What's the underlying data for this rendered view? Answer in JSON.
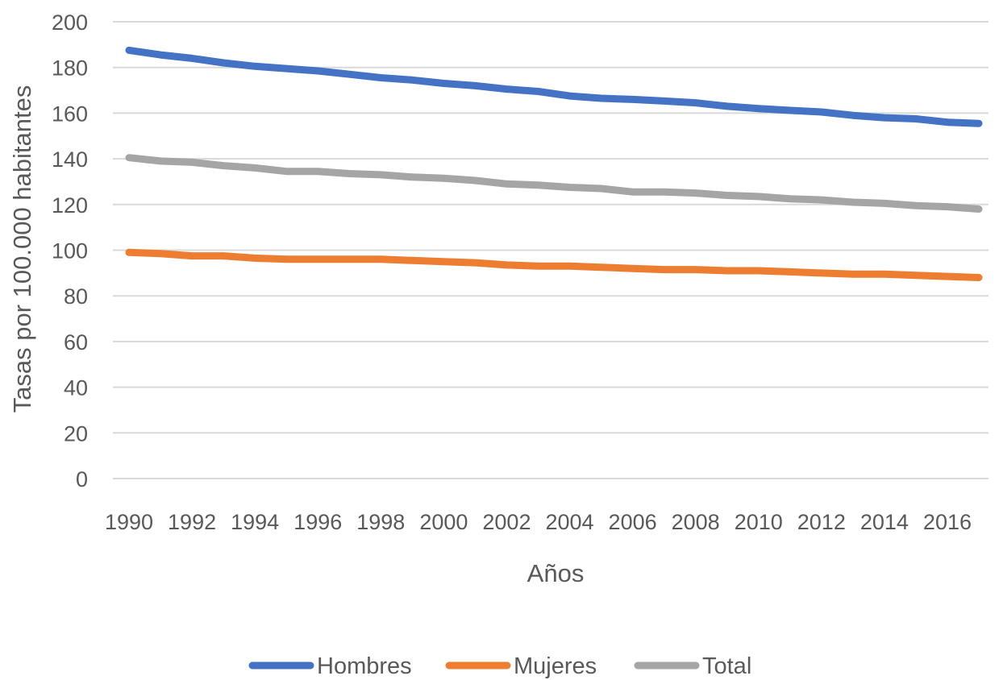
{
  "chart_data": {
    "type": "line",
    "title": "",
    "xlabel": "Años",
    "ylabel": "Tasas por 100.000 habitantes",
    "ylim": [
      0,
      200
    ],
    "yticks": [
      "0",
      "20",
      "40",
      "60",
      "80",
      "100",
      "120",
      "140",
      "160",
      "180",
      "200"
    ],
    "x": [
      1990,
      1991,
      1992,
      1993,
      1994,
      1995,
      1996,
      1997,
      1998,
      1999,
      2000,
      2001,
      2002,
      2003,
      2004,
      2005,
      2006,
      2007,
      2008,
      2009,
      2010,
      2011,
      2012,
      2013,
      2014,
      2015,
      2016,
      2017
    ],
    "xtick_labels": [
      "1990",
      "1992",
      "1994",
      "1996",
      "1998",
      "2000",
      "2002",
      "2004",
      "2006",
      "2008",
      "2010",
      "2012",
      "2014",
      "2016"
    ],
    "grid": true,
    "legend_position": "bottom",
    "series": [
      {
        "name": "Hombres",
        "color": "#4472c4",
        "values": [
          187.5,
          185.5,
          184,
          182,
          180.5,
          179.5,
          178.5,
          177,
          175.5,
          174.5,
          173,
          172,
          170.5,
          169.5,
          167.5,
          166.5,
          166,
          165.3,
          164.5,
          163,
          162,
          161.2,
          160.5,
          159,
          158,
          157.5,
          156,
          155.5
        ]
      },
      {
        "name": "Mujeres",
        "color": "#ed7d31",
        "values": [
          99,
          98.5,
          97.5,
          97.5,
          96.5,
          96,
          96,
          96,
          96,
          95.5,
          95,
          94.5,
          93.5,
          93,
          93,
          92.5,
          92,
          91.5,
          91.5,
          91,
          91,
          90.5,
          90,
          89.5,
          89.5,
          89,
          88.5,
          88
        ]
      },
      {
        "name": "Total",
        "color": "#a5a5a5",
        "values": [
          140.5,
          139,
          138.5,
          137,
          136,
          134.5,
          134.5,
          133.5,
          133,
          132,
          131.5,
          130.5,
          129,
          128.5,
          127.5,
          127,
          125.5,
          125.5,
          125,
          124,
          123.5,
          122.5,
          122,
          121,
          120.5,
          119.5,
          119,
          118
        ]
      }
    ]
  }
}
